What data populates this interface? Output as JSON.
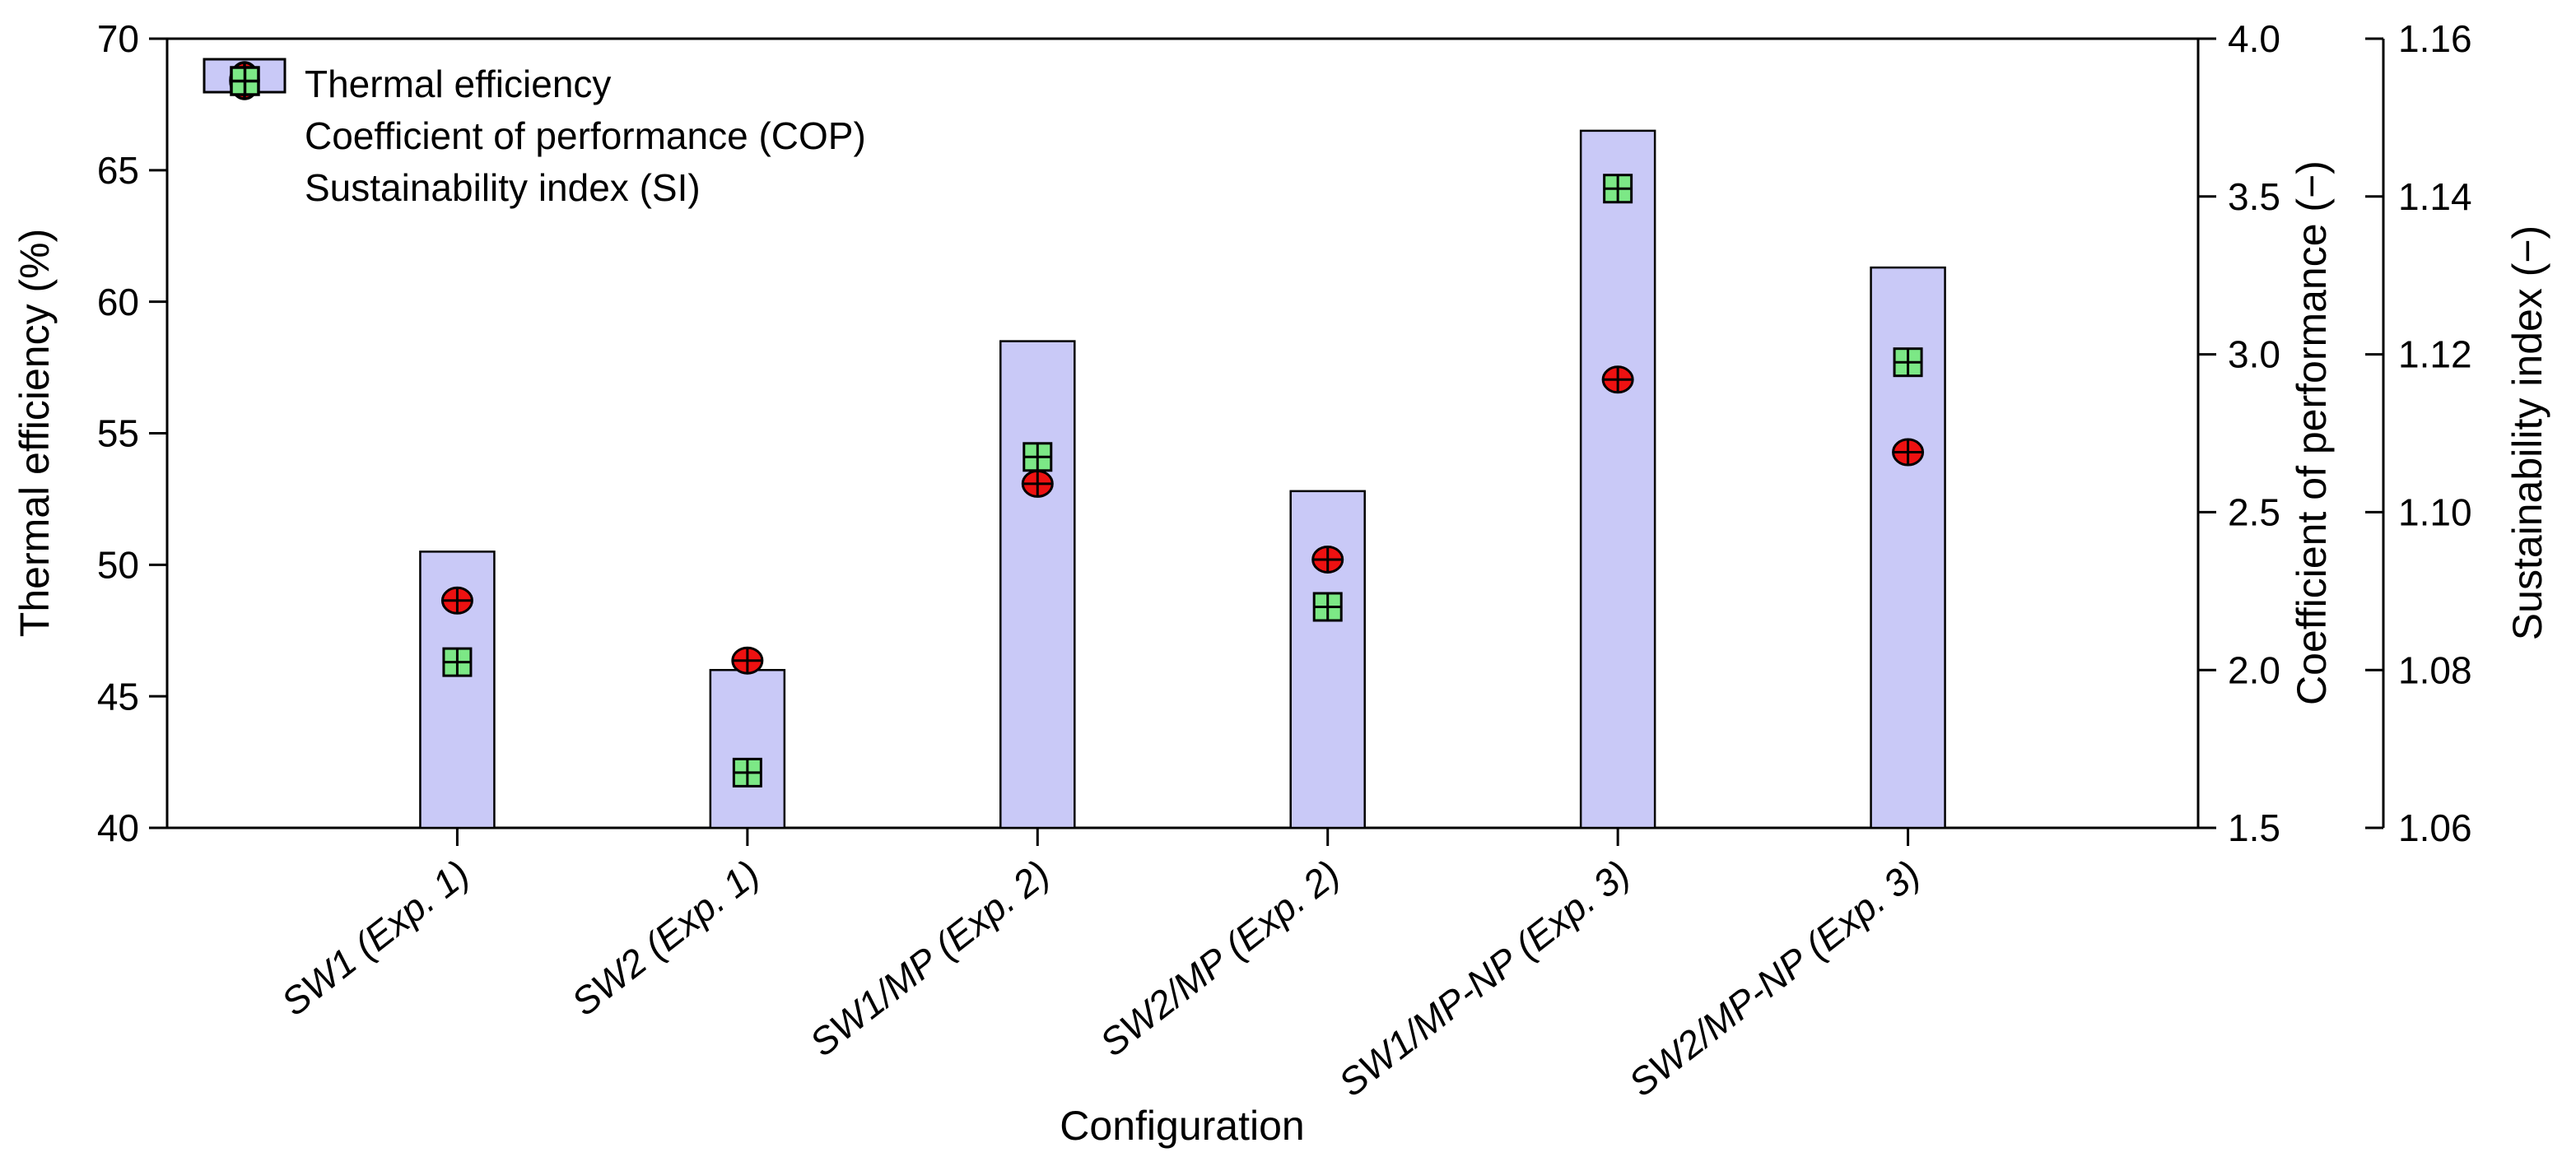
{
  "figure_title": "",
  "legend": {
    "items": [
      {
        "label": "Thermal efficiency",
        "marker": "bar-swatch"
      },
      {
        "label": "Coefficient of performance (COP)",
        "marker": "circle-cross"
      },
      {
        "label": "Sustainability index (SI)",
        "marker": "square-grid"
      }
    ]
  },
  "chart_data": {
    "type": "bar",
    "title": "",
    "xlabel": "Configuration",
    "categories": [
      "SW1 (Exp. 1)",
      "SW2 (Exp. 1)",
      "SW1/MP (Exp. 2)",
      "SW2/MP (Exp. 2)",
      "SW1/MP-NP (Exp. 3)",
      "SW2/MP-NP (Exp. 3)"
    ],
    "series": [
      {
        "name": "Thermal efficiency",
        "type": "bar",
        "axis": "left",
        "values": [
          50.5,
          46.0,
          58.5,
          52.8,
          66.5,
          61.3
        ]
      },
      {
        "name": "Coefficient of performance (COP)",
        "type": "scatter",
        "axis": "cop",
        "marker": "circle-cross",
        "values": [
          2.22,
          2.03,
          2.59,
          2.35,
          2.92,
          2.69
        ]
      },
      {
        "name": "Sustainability index (SI)",
        "type": "scatter",
        "axis": "si",
        "marker": "square-grid",
        "values": [
          1.081,
          1.067,
          1.107,
          1.088,
          1.141,
          1.119
        ]
      }
    ],
    "axes": {
      "left": {
        "label": "Thermal efficiency (%)",
        "min": 40,
        "max": 70,
        "tick_labels": [
          "40",
          "45",
          "50",
          "55",
          "60",
          "65",
          "70"
        ]
      },
      "cop": {
        "label": "Coefficient of performance (−)",
        "min": 1.5,
        "max": 4.0,
        "tick_labels": [
          "1.5",
          "2.0",
          "2.5",
          "3.0",
          "3.5",
          "4.0"
        ]
      },
      "si": {
        "label": "Sustainability index (−)",
        "min": 1.06,
        "max": 1.16,
        "tick_labels": [
          "1.06",
          "1.08",
          "1.10",
          "1.12",
          "1.14",
          "1.16"
        ]
      }
    },
    "grid": false,
    "legend_position": "top-left-inside",
    "colors": {
      "bar_fill": "#c9c9f7",
      "bar_stroke": "#000000",
      "cop_marker_fill": "#ee1111",
      "si_marker_fill": "#7ce886",
      "marker_stroke": "#000000",
      "axis_line": "#000000",
      "text": "#000000",
      "background": "#ffffff"
    }
  }
}
